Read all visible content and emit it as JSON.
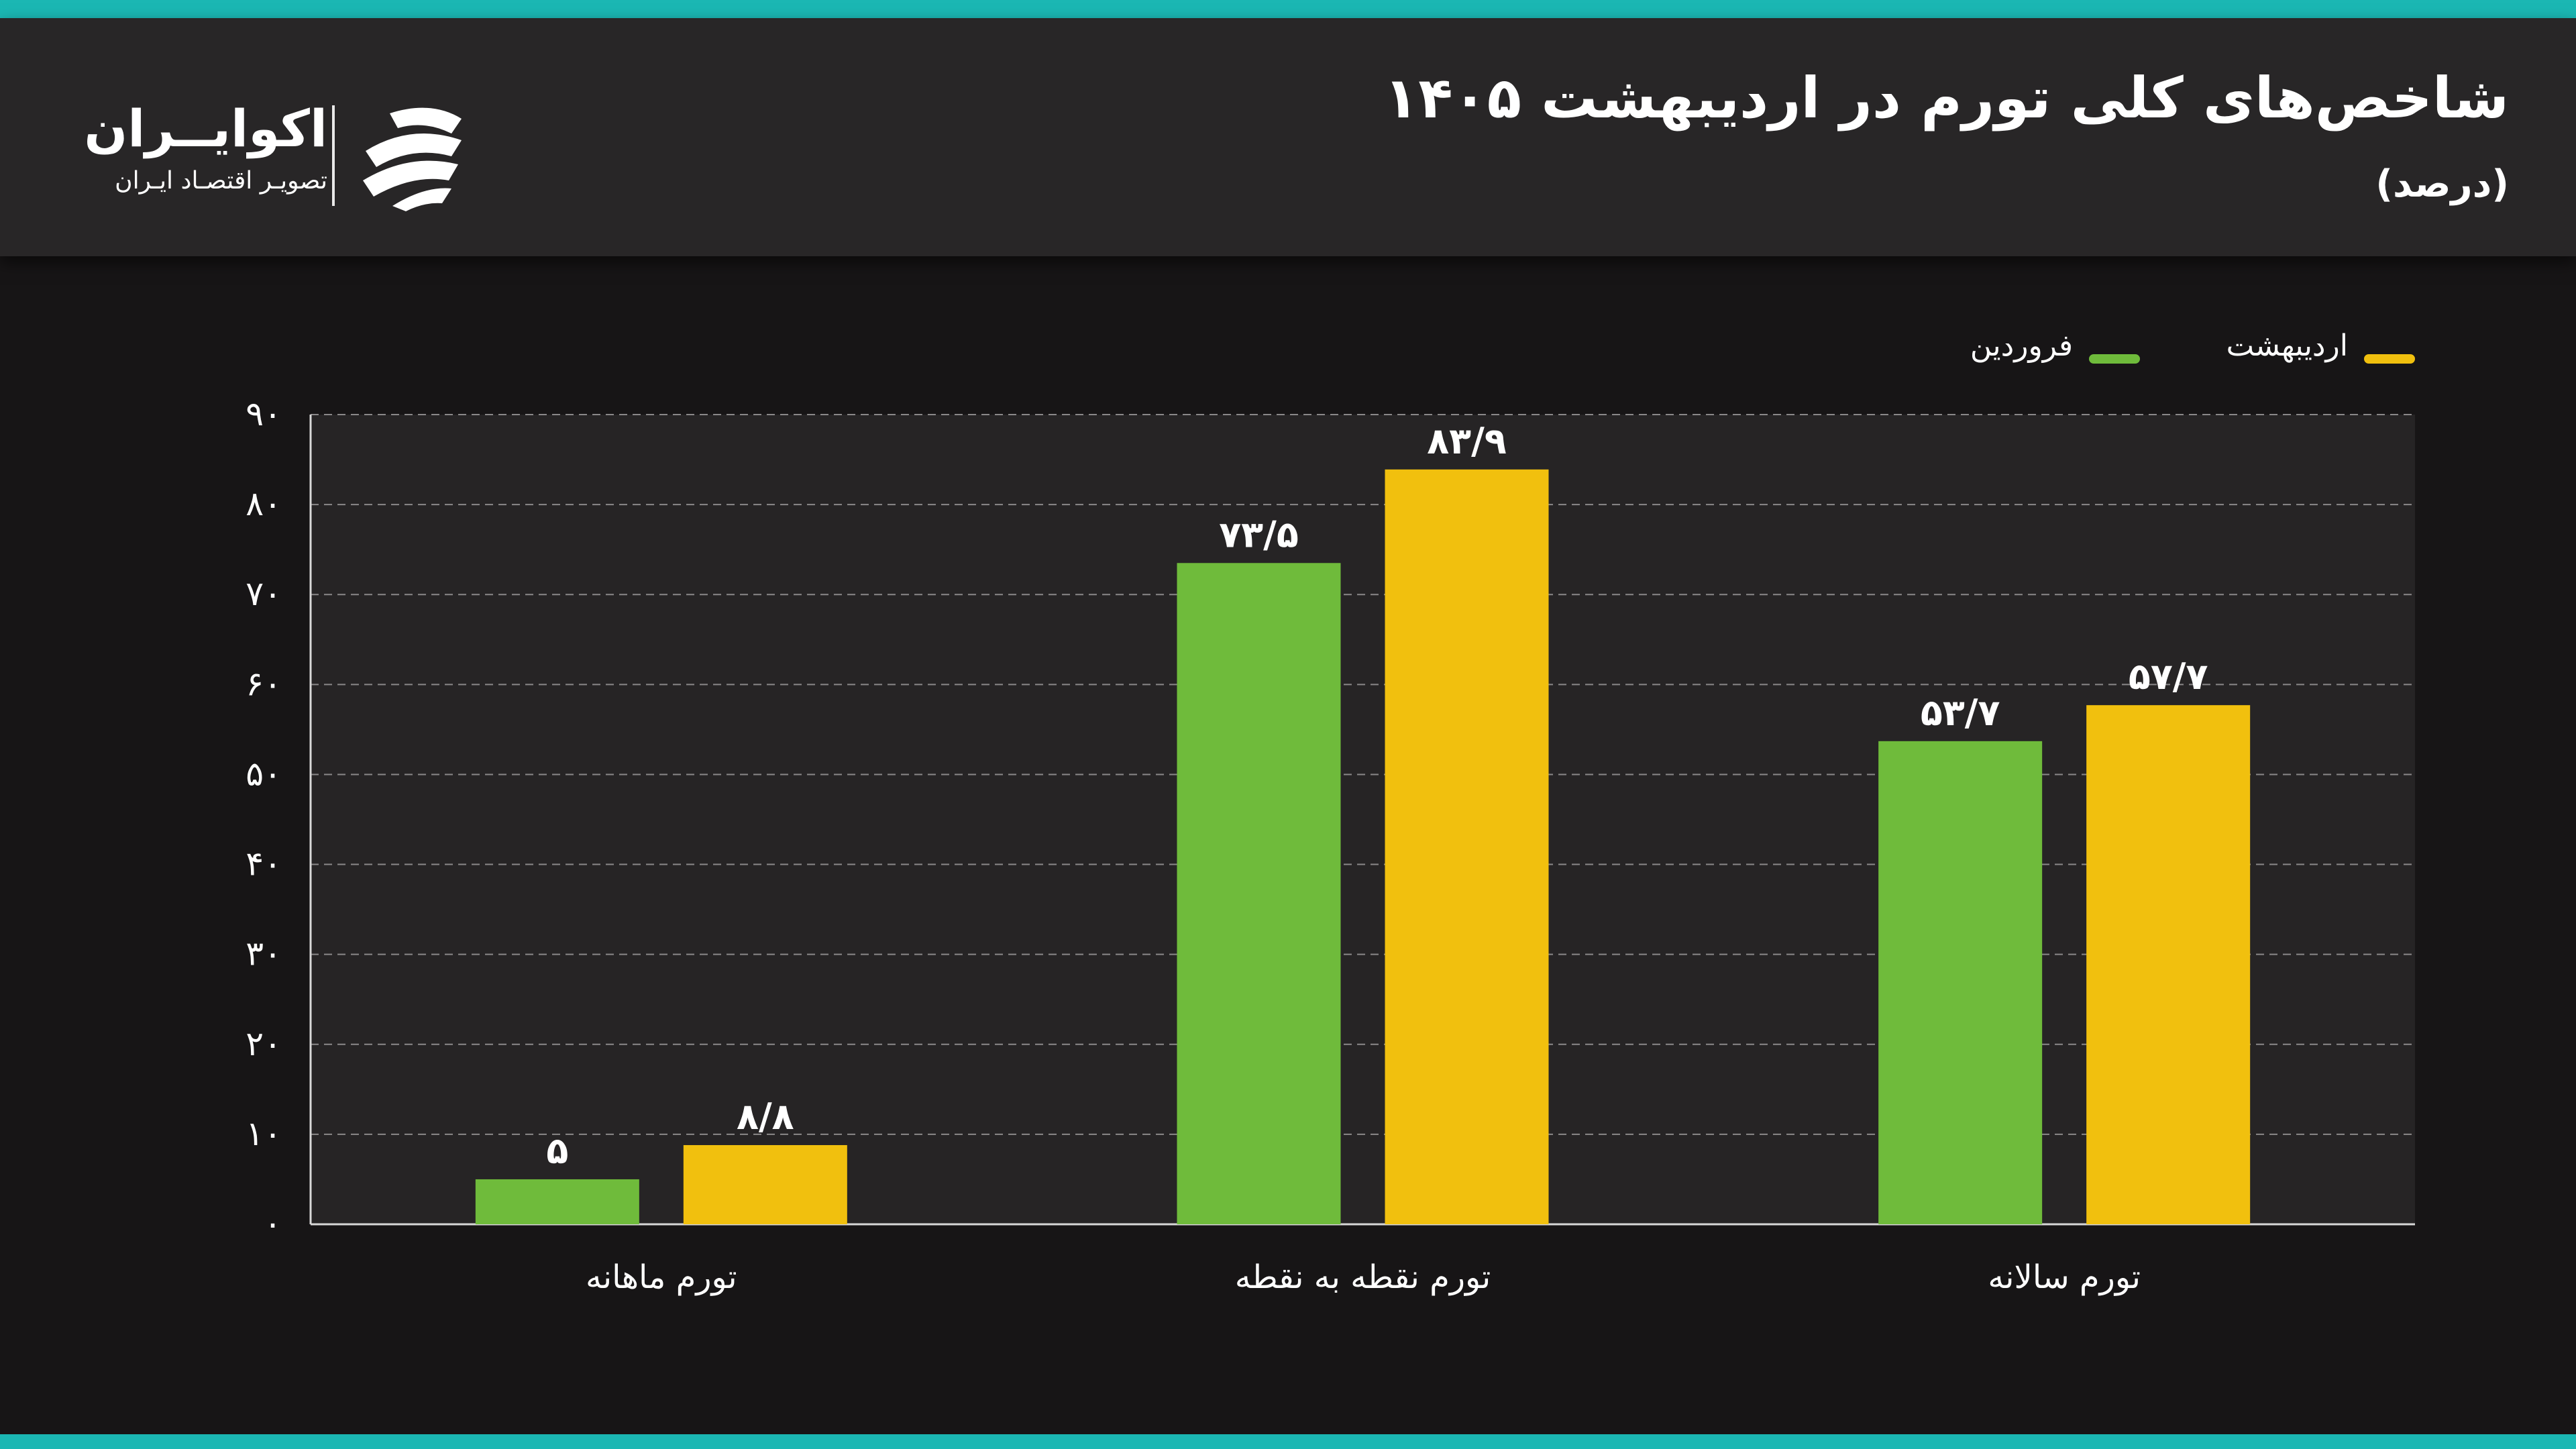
{
  "header": {
    "title": "شاخص‌های کلی تورم در اردیبهشت ۱۴۰۵",
    "subtitle": "(درصد)"
  },
  "logo": {
    "name": "اکوایــران",
    "tagline": "تصویـر اقتصـاد ایـران"
  },
  "colors": {
    "accent": "#1bb7b3",
    "farvardin": "#6fbb3b",
    "ordibehesht": "#f1c00e",
    "header_bg": "#282627",
    "plot_bg": "#262425",
    "page_bg": "#171516"
  },
  "chart_data": {
    "type": "bar",
    "title": "شاخص‌های کلی تورم در اردیبهشت ۱۴۰۵",
    "subtitle": "(درصد)",
    "categories": [
      "تورم ماهانه",
      "تورم نقطه به نقطه",
      "تورم سالانه"
    ],
    "series": [
      {
        "name": "فروردین",
        "color": "#6fbb3b",
        "values": [
          5,
          73.5,
          53.7
        ],
        "labels": [
          "۵",
          "۷۳/۵",
          "۵۳/۷"
        ]
      },
      {
        "name": "اردیبهشت",
        "color": "#f1c00e",
        "values": [
          8.8,
          83.9,
          57.7
        ],
        "labels": [
          "۸/۸",
          "۸۳/۹",
          "۵۷/۷"
        ]
      }
    ],
    "ylim": [
      0,
      90
    ],
    "yticks": [
      0,
      10,
      20,
      30,
      40,
      50,
      60,
      70,
      80,
      90
    ],
    "ytick_labels": [
      "۰",
      "۱۰",
      "۲۰",
      "۳۰",
      "۴۰",
      "۵۰",
      "۶۰",
      "۷۰",
      "۸۰",
      "۹۰"
    ],
    "grid": true,
    "legend_position": "top-right"
  }
}
